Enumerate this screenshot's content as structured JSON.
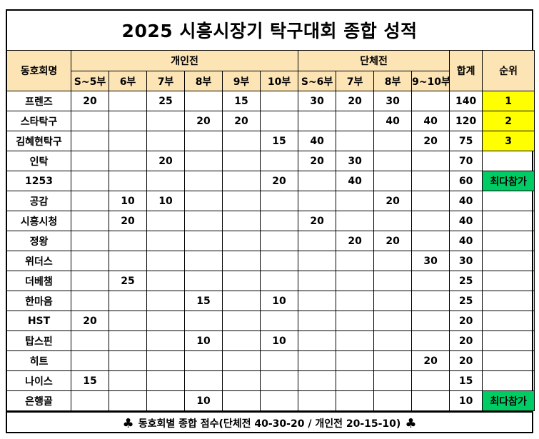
{
  "title": "2025 시흥시장기 탁구대회 종합 성적",
  "headers": {
    "club": "동호회명",
    "individual": "개인전",
    "team": "단체전",
    "total": "합계",
    "rank": "순위",
    "individual_divs": [
      "S~5부",
      "6부",
      "7부",
      "8부",
      "9부",
      "10부"
    ],
    "team_divs": [
      "S~6부",
      "7부",
      "8부",
      "9~10부"
    ]
  },
  "rows": [
    {
      "name": "프렌즈",
      "ind": [
        "20",
        "",
        "25",
        "",
        "15",
        ""
      ],
      "team": [
        "30",
        "20",
        "30",
        ""
      ],
      "total": "140",
      "rank": "1",
      "rank_style": "yellow"
    },
    {
      "name": "스타탁구",
      "ind": [
        "",
        "",
        "",
        "20",
        "20",
        ""
      ],
      "team": [
        "",
        "",
        "40",
        "40"
      ],
      "total": "120",
      "rank": "2",
      "rank_style": "yellow"
    },
    {
      "name": "김혜현탁구",
      "ind": [
        "",
        "",
        "",
        "",
        "",
        "15"
      ],
      "team": [
        "40",
        "",
        "",
        "20"
      ],
      "total": "75",
      "rank": "3",
      "rank_style": "yellow"
    },
    {
      "name": "인탁",
      "ind": [
        "",
        "",
        "20",
        "",
        "",
        ""
      ],
      "team": [
        "20",
        "30",
        "",
        ""
      ],
      "total": "70",
      "rank": "",
      "rank_style": ""
    },
    {
      "name": "1253",
      "ind": [
        "",
        "",
        "",
        "",
        "",
        "20"
      ],
      "team": [
        "",
        "40",
        "",
        ""
      ],
      "total": "60",
      "rank": "최다참가",
      "rank_style": "green"
    },
    {
      "name": "공감",
      "ind": [
        "",
        "10",
        "10",
        "",
        "",
        ""
      ],
      "team": [
        "",
        "",
        "20",
        ""
      ],
      "total": "40",
      "rank": "",
      "rank_style": ""
    },
    {
      "name": "시흥시청",
      "ind": [
        "",
        "20",
        "",
        "",
        "",
        ""
      ],
      "team": [
        "20",
        "",
        "",
        ""
      ],
      "total": "40",
      "rank": "",
      "rank_style": ""
    },
    {
      "name": "정왕",
      "ind": [
        "",
        "",
        "",
        "",
        "",
        ""
      ],
      "team": [
        "",
        "20",
        "20",
        ""
      ],
      "total": "40",
      "rank": "",
      "rank_style": ""
    },
    {
      "name": "위더스",
      "ind": [
        "",
        "",
        "",
        "",
        "",
        ""
      ],
      "team": [
        "",
        "",
        "",
        "30"
      ],
      "total": "30",
      "rank": "",
      "rank_style": ""
    },
    {
      "name": "더베챔",
      "ind": [
        "",
        "25",
        "",
        "",
        "",
        ""
      ],
      "team": [
        "",
        "",
        "",
        ""
      ],
      "total": "25",
      "rank": "",
      "rank_style": ""
    },
    {
      "name": "한마음",
      "ind": [
        "",
        "",
        "",
        "15",
        "",
        "10"
      ],
      "team": [
        "",
        "",
        "",
        ""
      ],
      "total": "25",
      "rank": "",
      "rank_style": ""
    },
    {
      "name": "HST",
      "ind": [
        "20",
        "",
        "",
        "",
        "",
        ""
      ],
      "team": [
        "",
        "",
        "",
        ""
      ],
      "total": "20",
      "rank": "",
      "rank_style": ""
    },
    {
      "name": "탑스핀",
      "ind": [
        "",
        "",
        "",
        "10",
        "",
        "10"
      ],
      "team": [
        "",
        "",
        "",
        ""
      ],
      "total": "20",
      "rank": "",
      "rank_style": ""
    },
    {
      "name": "히트",
      "ind": [
        "",
        "",
        "",
        "",
        "",
        ""
      ],
      "team": [
        "",
        "",
        "",
        "20"
      ],
      "total": "20",
      "rank": "",
      "rank_style": ""
    },
    {
      "name": "나이스",
      "ind": [
        "15",
        "",
        "",
        "",
        "",
        ""
      ],
      "team": [
        "",
        "",
        "",
        ""
      ],
      "total": "15",
      "rank": "",
      "rank_style": ""
    },
    {
      "name": "은행골",
      "ind": [
        "",
        "",
        "",
        "10",
        "",
        ""
      ],
      "team": [
        "",
        "",
        "",
        ""
      ],
      "total": "10",
      "rank": "최다참가",
      "rank_style": "green"
    }
  ],
  "footer": {
    "symbol": "♣",
    "text": "동호회별 종합 점수(단체전 40-30-20 / 개인전 20-15-10)"
  },
  "colors": {
    "header_bg": "#FCE4B5",
    "rank_top3": "#FFFF00",
    "most_participation": "#00CC66"
  }
}
